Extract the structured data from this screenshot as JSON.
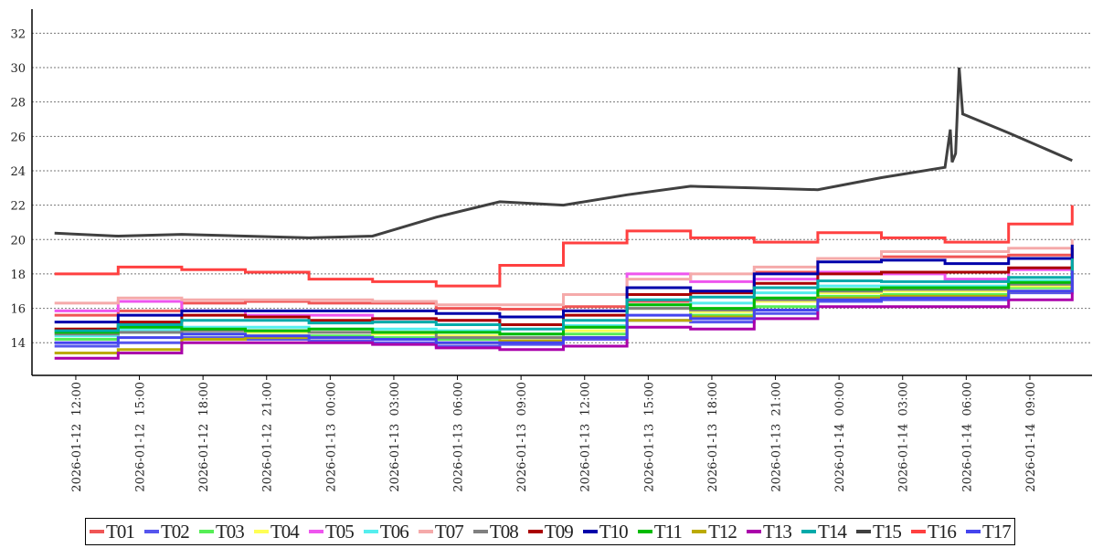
{
  "chart_data": {
    "type": "line",
    "title": "",
    "xlabel": "",
    "ylabel": "",
    "ylim": [
      12.1,
      33.4
    ],
    "xlim": [
      "2026-01-12T09:56",
      "2026-01-14T11:56"
    ],
    "yticks": [
      14,
      16,
      18,
      20,
      22,
      24,
      26,
      28,
      30,
      32
    ],
    "xticks": [
      "2026-01-12T12:00",
      "2026-01-12T15:00",
      "2026-01-12T18:00",
      "2026-01-12T21:00",
      "2026-01-13T00:00",
      "2026-01-13T03:00",
      "2026-01-13T06:00",
      "2026-01-13T09:00",
      "2026-01-13T12:00",
      "2026-01-13T15:00",
      "2026-01-13T18:00",
      "2026-01-13T21:00",
      "2026-01-14T00:00",
      "2026-01-14T03:00",
      "2026-01-14T06:00",
      "2026-01-14T09:00"
    ],
    "xtick_labels": [
      "2026-01-12  12:00",
      "2026-01-12  15:00",
      "2026-01-12  18:00",
      "2026-01-12  21:00",
      "2026-01-13  00:00",
      "2026-01-13  03:00",
      "2026-01-13  06:00",
      "2026-01-13  09:00",
      "2026-01-13  12:00",
      "2026-01-13  15:00",
      "2026-01-13  18:00",
      "2026-01-13  21:00",
      "2026-01-14  00:00",
      "2026-01-14  03:00",
      "2026-01-14  06:00",
      "2026-01-14  09:00"
    ],
    "grid": "horizontal-dashed",
    "legend_position": "bottom",
    "x": [
      "2026-01-12T11:00",
      "2026-01-12T14:00",
      "2026-01-12T17:00",
      "2026-01-12T20:00",
      "2026-01-12T23:00",
      "2026-01-13T02:00",
      "2026-01-13T05:00",
      "2026-01-13T08:00",
      "2026-01-13T11:00",
      "2026-01-13T14:00",
      "2026-01-13T17:00",
      "2026-01-13T20:00",
      "2026-01-13T23:00",
      "2026-01-14T02:00",
      "2026-01-14T05:00",
      "2026-01-14T08:00",
      "2026-01-14T11:00"
    ],
    "series": [
      {
        "name": "T01",
        "color": "#f05555",
        "values": [
          15.6,
          15.85,
          16.3,
          16.4,
          16.3,
          16.3,
          16.0,
          15.95,
          16.1,
          16.4,
          17.0,
          18.1,
          18.9,
          19.0,
          19.0,
          19.1,
          19.7
        ]
      },
      {
        "name": "T02",
        "color": "#5555ee",
        "values": [
          13.8,
          14.0,
          14.3,
          14.2,
          14.1,
          14.0,
          13.8,
          13.9,
          14.2,
          15.3,
          15.2,
          15.7,
          16.4,
          16.5,
          16.5,
          16.9,
          18.1
        ]
      },
      {
        "name": "T03",
        "color": "#55ee55",
        "values": [
          14.2,
          14.6,
          14.5,
          14.4,
          14.4,
          14.3,
          14.2,
          14.1,
          14.5,
          16.0,
          15.6,
          16.1,
          16.7,
          16.8,
          16.8,
          17.2,
          18.3
        ]
      },
      {
        "name": "T04",
        "color": "#ffff55",
        "values": [
          14.8,
          15.1,
          14.7,
          14.6,
          14.6,
          14.5,
          14.4,
          14.3,
          14.7,
          16.0,
          15.8,
          16.4,
          16.9,
          17.0,
          17.0,
          17.3,
          18.4
        ]
      },
      {
        "name": "T05",
        "color": "#ee55ee",
        "values": [
          15.85,
          16.4,
          15.85,
          15.6,
          15.6,
          15.4,
          15.3,
          15.05,
          15.85,
          18.0,
          17.55,
          17.7,
          18.1,
          18.0,
          17.7,
          18.25,
          19.0
        ]
      },
      {
        "name": "T06",
        "color": "#55eeee",
        "values": [
          14.4,
          14.75,
          14.9,
          14.9,
          14.8,
          14.8,
          14.7,
          14.5,
          15.0,
          16.2,
          16.3,
          16.9,
          17.3,
          17.3,
          17.3,
          17.6,
          18.6
        ]
      },
      {
        "name": "T07",
        "color": "#f5aaaa",
        "values": [
          16.3,
          16.6,
          16.5,
          16.5,
          16.5,
          16.4,
          16.2,
          16.2,
          16.8,
          17.7,
          18.0,
          18.4,
          18.9,
          19.3,
          19.3,
          19.5,
          20.0
        ]
      },
      {
        "name": "T08",
        "color": "#808080",
        "values": [
          14.5,
          14.6,
          14.7,
          14.7,
          14.6,
          14.6,
          14.3,
          14.3,
          14.9,
          16.0,
          15.9,
          16.5,
          17.0,
          17.1,
          17.1,
          17.4,
          18.3
        ]
      },
      {
        "name": "T09",
        "color": "#aa0000",
        "values": [
          14.8,
          15.2,
          15.6,
          15.5,
          15.3,
          15.4,
          15.3,
          15.05,
          15.6,
          16.8,
          16.9,
          17.45,
          18.0,
          18.1,
          18.1,
          18.35,
          19.5
        ]
      },
      {
        "name": "T10",
        "color": "#0000aa",
        "values": [
          15.2,
          15.6,
          15.85,
          15.85,
          15.85,
          15.85,
          15.7,
          15.5,
          15.85,
          17.2,
          17.0,
          18.0,
          18.7,
          18.8,
          18.6,
          18.9,
          19.7
        ]
      },
      {
        "name": "T11",
        "color": "#00bb00",
        "values": [
          14.6,
          14.9,
          14.8,
          14.7,
          14.8,
          14.6,
          14.6,
          14.5,
          14.9,
          16.2,
          16.0,
          16.6,
          17.1,
          17.2,
          17.2,
          17.5,
          18.5
        ]
      },
      {
        "name": "T12",
        "color": "#bbaa00",
        "values": [
          13.4,
          13.6,
          14.2,
          14.3,
          14.3,
          14.2,
          14.0,
          14.1,
          14.3,
          15.3,
          15.5,
          15.9,
          16.6,
          16.7,
          16.7,
          17.0,
          18.2
        ]
      },
      {
        "name": "T13",
        "color": "#aa00aa",
        "values": [
          13.1,
          13.4,
          14.0,
          14.0,
          14.0,
          13.9,
          13.7,
          13.6,
          13.8,
          14.9,
          14.8,
          15.4,
          16.1,
          16.1,
          16.1,
          16.5,
          17.6
        ]
      },
      {
        "name": "T14",
        "color": "#00aaaa",
        "values": [
          14.7,
          15.05,
          15.3,
          15.3,
          15.15,
          15.2,
          15.05,
          14.8,
          15.3,
          16.5,
          16.65,
          17.2,
          17.6,
          17.55,
          17.55,
          17.8,
          18.9
        ]
      },
      {
        "name": "T15",
        "color": "#404040",
        "x": [
          "2026-01-12T11:00",
          "2026-01-12T14:00",
          "2026-01-12T17:00",
          "2026-01-12T20:00",
          "2026-01-12T23:00",
          "2026-01-13T02:00",
          "2026-01-13T05:00",
          "2026-01-13T08:00",
          "2026-01-13T11:00",
          "2026-01-13T14:00",
          "2026-01-13T17:00",
          "2026-01-13T20:00",
          "2026-01-13T23:00",
          "2026-01-14T02:00",
          "2026-01-14T05:00",
          "2026-01-14T05:15",
          "2026-01-14T05:20",
          "2026-01-14T05:30",
          "2026-01-14T05:40",
          "2026-01-14T05:50",
          "2026-01-14T08:00",
          "2026-01-14T11:00"
        ],
        "values": [
          20.37,
          20.2,
          20.3,
          20.2,
          20.1,
          20.2,
          21.3,
          22.2,
          22.0,
          22.6,
          23.1,
          23.0,
          22.9,
          23.6,
          24.2,
          26.4,
          24.5,
          25.0,
          30.0,
          27.3,
          26.2,
          24.6
        ]
      },
      {
        "name": "T16",
        "color": "#ff4040",
        "values": [
          18.0,
          18.4,
          18.25,
          18.1,
          17.7,
          17.55,
          17.3,
          18.5,
          19.8,
          20.5,
          20.1,
          19.85,
          20.4,
          20.1,
          19.85,
          20.9,
          22.0
        ]
      },
      {
        "name": "T17",
        "color": "#4444ee",
        "values": [
          14.0,
          14.3,
          14.5,
          14.4,
          14.3,
          14.2,
          14.0,
          14.0,
          14.3,
          15.6,
          15.4,
          15.9,
          16.5,
          16.6,
          16.6,
          17.0,
          18.2
        ]
      }
    ]
  }
}
